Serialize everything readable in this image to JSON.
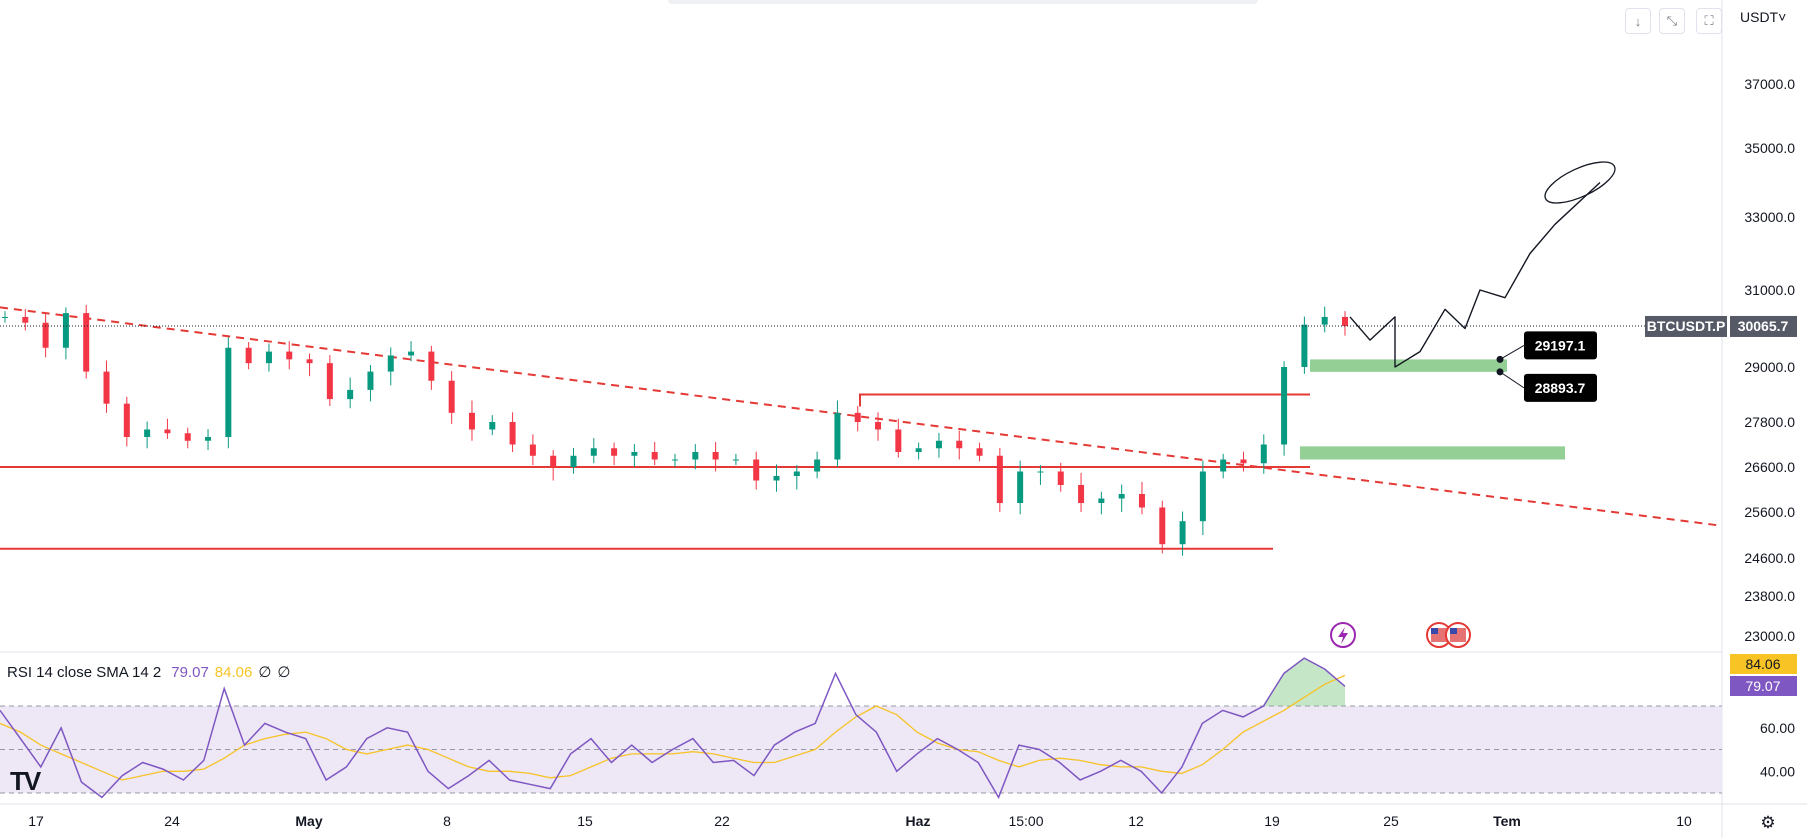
{
  "toolbar": {
    "buttons": [
      {
        "icon": "arrow-down-icon",
        "glyph": "↓"
      },
      {
        "icon": "collapse-icon",
        "glyph": "⤡"
      },
      {
        "icon": "fullscreen-icon",
        "glyph": "⛶"
      }
    ],
    "currency": "USDT˅"
  },
  "rsi_legend": {
    "label": "RSI 14 close SMA 14 2",
    "rsi_value": "79.07",
    "sma_value": "84.06",
    "extra1": "∅",
    "extra2": "∅"
  },
  "symbol": {
    "name": "BTCUSDT.P",
    "last_price": "30065.7"
  },
  "logo": "TV",
  "chart_data": [
    {
      "type": "candlestick",
      "title": "",
      "x_ticks": [
        "17",
        "24",
        "May",
        "8",
        "15",
        "22",
        "Haz",
        "15:00",
        "12",
        "19",
        "25",
        "Tem",
        "10"
      ],
      "y_ticks": [
        23000.0,
        23800.0,
        24600.0,
        25600.0,
        26600.0,
        27800.0,
        29000.0,
        31000.0,
        33000.0,
        35000.0,
        37000.0
      ],
      "last_price": 30065.7,
      "price_series": [
        30300,
        30150,
        29500,
        30400,
        28900,
        28200,
        27400,
        27600,
        27500,
        27300,
        27400,
        29500,
        29100,
        29400,
        29200,
        29100,
        28300,
        28500,
        28900,
        29300,
        29400,
        28700,
        28000,
        27600,
        27800,
        27200,
        26900,
        26600,
        26900,
        27100,
        26900,
        27000,
        26800,
        26800,
        27000,
        26800,
        26800,
        26300,
        26400,
        26500,
        26800,
        28000,
        27800,
        27600,
        27000,
        27100,
        27300,
        27100,
        26900,
        25800,
        26500,
        26500,
        26200,
        25800,
        25900,
        26000,
        25700,
        24900,
        25400,
        26500,
        26800,
        26700,
        27200,
        29000,
        30100,
        30300,
        30065
      ],
      "horizontal_levels": [
        26600,
        24800,
        28400
      ],
      "trendline": {
        "from": 30550,
        "to": 25300
      },
      "zones": [
        {
          "low": 28893.7,
          "high": 29197.1
        },
        {
          "low": 26800,
          "high": 27150
        }
      ],
      "price_labels": [
        "29197.1",
        "28893.7"
      ],
      "projection_sketch": [
        30300,
        29700,
        30300,
        29000,
        29400,
        30500,
        30000,
        31000,
        30800,
        32000,
        32800,
        34000
      ]
    },
    {
      "type": "line",
      "title": "RSI 14 close SMA 14 2",
      "y_ticks": [
        40.0,
        60.0
      ],
      "bands": {
        "upper": 70,
        "middle": 50,
        "lower": 30
      },
      "series": [
        {
          "name": "RSI",
          "value": 79.07,
          "color": "#7e57c2"
        },
        {
          "name": "SMA",
          "value": 84.06,
          "color": "#f7c325"
        }
      ],
      "rsi_series": [
        68,
        55,
        42,
        60,
        35,
        28,
        38,
        44,
        41,
        36,
        45,
        78,
        52,
        62,
        58,
        55,
        36,
        42,
        55,
        60,
        58,
        40,
        32,
        38,
        45,
        36,
        34,
        32,
        48,
        55,
        44,
        52,
        44,
        50,
        55,
        44,
        45,
        38,
        52,
        58,
        62,
        85,
        66,
        58,
        40,
        48,
        55,
        50,
        44,
        28,
        52,
        50,
        44,
        36,
        40,
        45,
        40,
        30,
        42,
        62,
        68,
        65,
        70,
        85,
        92,
        87,
        79.07
      ],
      "sma_series": [
        62,
        58,
        52,
        48,
        44,
        40,
        36,
        38,
        40,
        40,
        41,
        46,
        52,
        55,
        57,
        58,
        55,
        50,
        48,
        50,
        52,
        50,
        46,
        42,
        40,
        40,
        39,
        37,
        38,
        42,
        46,
        48,
        48,
        48,
        49,
        48,
        46,
        44,
        44,
        47,
        50,
        58,
        65,
        70,
        66,
        58,
        53,
        50,
        49,
        45,
        42,
        45,
        46,
        45,
        43,
        42,
        42,
        40,
        39,
        43,
        50,
        58,
        63,
        68,
        74,
        80,
        84.06
      ],
      "value_labels": [
        "84.06",
        "79.07"
      ]
    }
  ],
  "colors": {
    "candle_up": "#089981",
    "candle_down": "#f23645",
    "red_line": "#e53935",
    "zone": "#81c784",
    "rsi": "#7e57c2",
    "sma": "#f7c325",
    "rsi_band": "#ede7f6"
  }
}
